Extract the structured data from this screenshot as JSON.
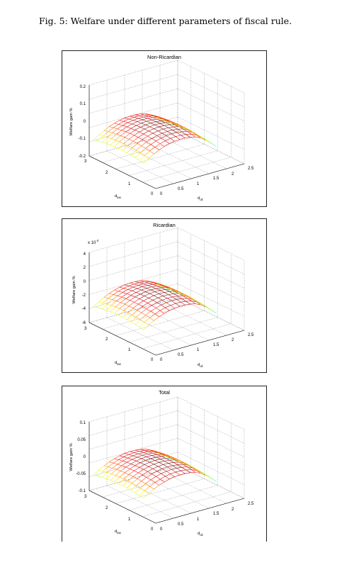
{
  "figure": {
    "caption": "Fig. 5: Welfare under different parameters of fiscal rule."
  },
  "panels": [
    {
      "title": "Non-Ricardian",
      "zlabel": "Welfare gain %",
      "xlabel_main": "d",
      "xlabel_sub": "tax",
      "ylabel_main": "d",
      "ylabel_sub": "oil",
      "exponent": "",
      "ztick_labels": [
        "0.2",
        "0.1",
        "0",
        "-0.1",
        "-0.2"
      ],
      "xtick_labels": [
        "3",
        "2",
        "1",
        "0"
      ],
      "ytick_labels": [
        "0",
        "0.5",
        "1",
        "1.5",
        "2",
        "2.5"
      ]
    },
    {
      "title": "Ricardian",
      "zlabel": "Welfare gain %",
      "xlabel_main": "d",
      "xlabel_sub": "tax",
      "ylabel_main": "d",
      "ylabel_sub": "oil",
      "exponent": "x 10",
      "exponent_power": "-3",
      "ztick_labels": [
        "4",
        "2",
        "0",
        "-2",
        "-4",
        "-6"
      ],
      "xtick_labels": [
        "3",
        "2",
        "1",
        "0"
      ],
      "ytick_labels": [
        "0",
        "0.5",
        "1",
        "1.5",
        "2",
        "2.5"
      ]
    },
    {
      "title": "Total",
      "zlabel": "Welfare gain %",
      "xlabel_main": "d",
      "xlabel_sub": "tax",
      "ylabel_main": "d",
      "ylabel_sub": "oil",
      "exponent": "",
      "ztick_labels": [
        "0.1",
        "0.05",
        "0",
        "-0.05",
        "-0.1"
      ],
      "xtick_labels": [
        "3",
        "2",
        "1",
        "0"
      ],
      "ytick_labels": [
        "0",
        "0.5",
        "1",
        "1.5",
        "2",
        "2.5"
      ]
    }
  ]
}
